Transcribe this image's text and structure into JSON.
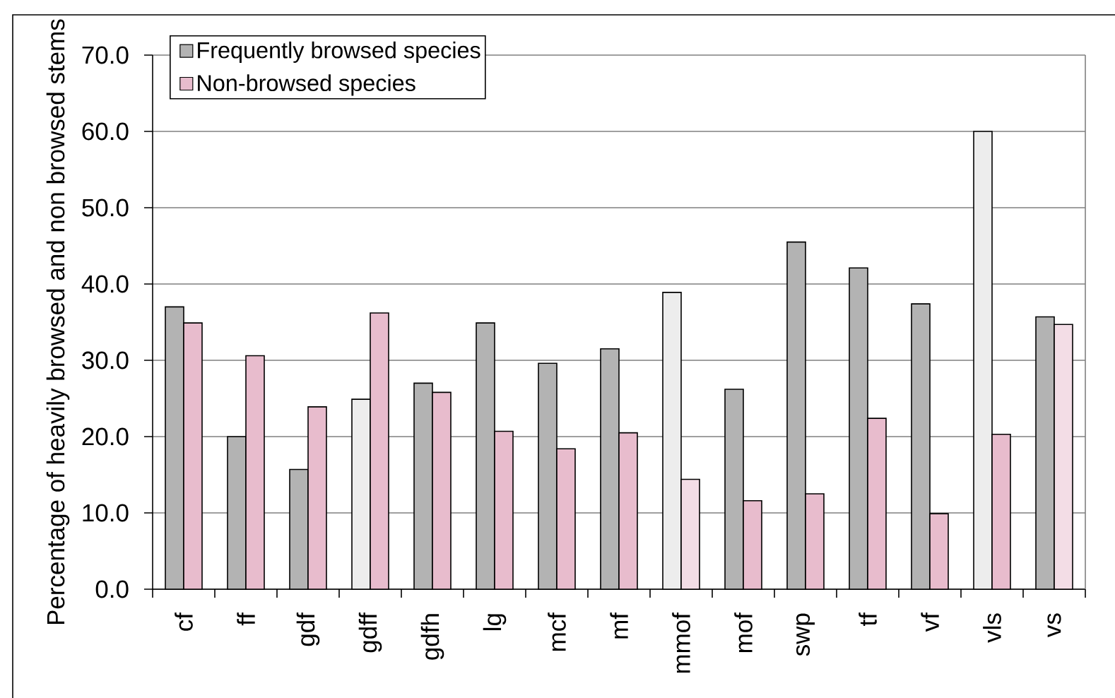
{
  "chart_data": {
    "type": "bar",
    "ylabel": "Percentage of heavily browsed and non browsed stems",
    "categories": [
      "cf",
      "ff",
      "gdf",
      "gdff",
      "gdfh",
      "lg",
      "mcf",
      "mf",
      "mmof",
      "mof",
      "swp",
      "tf",
      "vf",
      "vls",
      "vs"
    ],
    "series": [
      {
        "name": "Frequently browsed species",
        "color": "#b3b3b3",
        "colors": [
          "#b3b3b3",
          "#b3b3b3",
          "#b3b3b3",
          "#ededed",
          "#b3b3b3",
          "#b3b3b3",
          "#b3b3b3",
          "#b3b3b3",
          "#ededed",
          "#b3b3b3",
          "#b3b3b3",
          "#b3b3b3",
          "#b3b3b3",
          "#ededed",
          "#b3b3b3"
        ],
        "values": [
          37.0,
          20.0,
          15.7,
          24.9,
          27.0,
          34.9,
          29.6,
          31.5,
          38.9,
          26.2,
          45.5,
          42.1,
          37.4,
          60.0,
          35.7
        ]
      },
      {
        "name": "Non-browsed species",
        "color": "#e8bccd",
        "colors": [
          "#e8bccd",
          "#e8bccd",
          "#e8bccd",
          "#e8bccd",
          "#e8bccd",
          "#e8bccd",
          "#e8bccd",
          "#e8bccd",
          "#f3dde6",
          "#e8bccd",
          "#e8bccd",
          "#e8bccd",
          "#e8bccd",
          "#e8bccd",
          "#f3dde6"
        ],
        "values": [
          34.9,
          30.6,
          23.9,
          36.2,
          25.8,
          20.7,
          18.4,
          20.5,
          14.4,
          11.6,
          12.5,
          22.4,
          9.9,
          20.3,
          34.7
        ]
      }
    ],
    "ylim": [
      0,
      70
    ],
    "yticks": [
      {
        "value": 0,
        "label": "0.0"
      },
      {
        "value": 10,
        "label": "10.0"
      },
      {
        "value": 20,
        "label": "20.0"
      },
      {
        "value": 30,
        "label": "30.0"
      },
      {
        "value": 40,
        "label": "40.0"
      },
      {
        "value": 50,
        "label": "50.0"
      },
      {
        "value": 60,
        "label": "60.0"
      },
      {
        "value": 70,
        "label": "70.0"
      }
    ],
    "grid": "y",
    "legend": "top left"
  }
}
